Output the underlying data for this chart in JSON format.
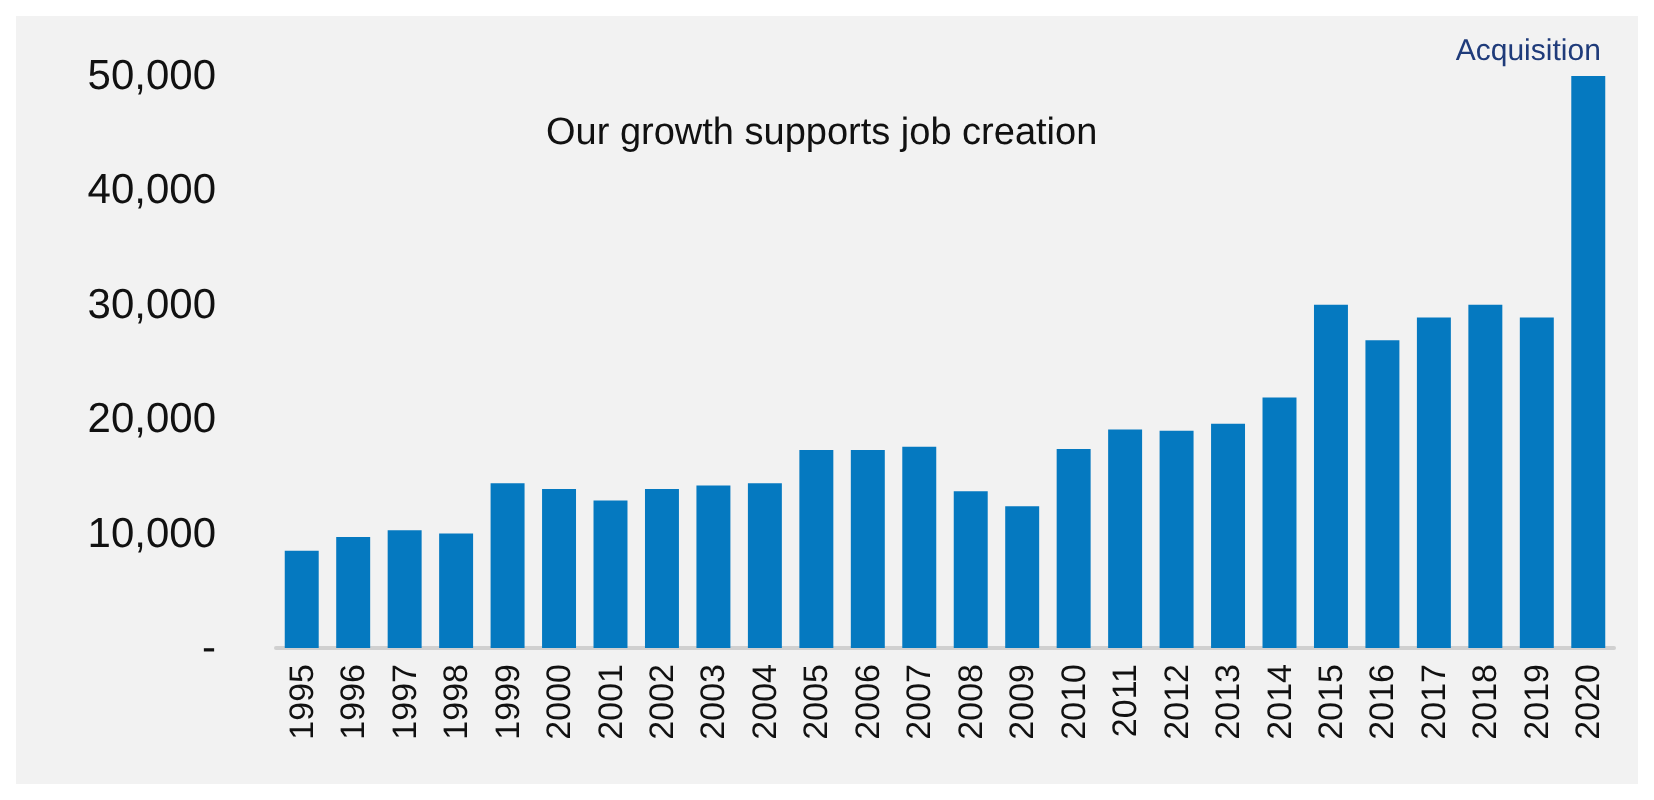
{
  "chart_data": {
    "type": "bar",
    "title": "Our growth supports job creation",
    "categories": [
      "1995",
      "1996",
      "1997",
      "1998",
      "1999",
      "2000",
      "2001",
      "2002",
      "2003",
      "2004",
      "2005",
      "2006",
      "2007",
      "2008",
      "2009",
      "2010",
      "2011",
      "2012",
      "2013",
      "2014",
      "2015",
      "2016",
      "2017",
      "2018",
      "2019",
      "2020"
    ],
    "values": [
      8500,
      9700,
      10300,
      10000,
      14400,
      13900,
      12900,
      13900,
      14200,
      14400,
      17300,
      17300,
      17600,
      13700,
      12400,
      17400,
      19100,
      19000,
      19600,
      21900,
      30000,
      26900,
      28900,
      30000,
      28900,
      50000
    ],
    "color": "#0579c0",
    "ylim": [
      0,
      50000
    ],
    "yticks": [
      {
        "value": 0,
        "label": "-"
      },
      {
        "value": 10000,
        "label": "10,000"
      },
      {
        "value": 20000,
        "label": "20,000"
      },
      {
        "value": 30000,
        "label": "30,000"
      },
      {
        "value": 40000,
        "label": "40,000"
      },
      {
        "value": 50000,
        "label": "50,000"
      }
    ],
    "annotations": [
      {
        "text": "Acquisition",
        "x": "2020",
        "y": 50000
      }
    ],
    "grid": false
  }
}
